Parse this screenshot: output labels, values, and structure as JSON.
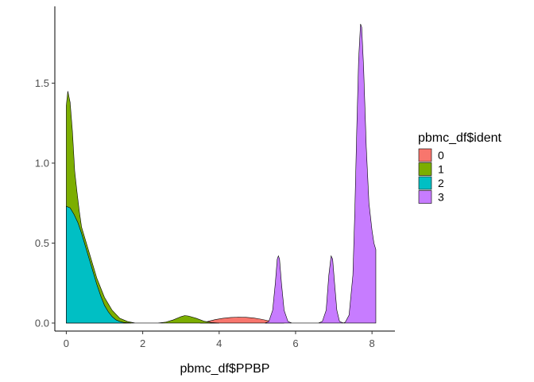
{
  "chart_data": {
    "type": "area",
    "subtype": "density",
    "title": "",
    "xlabel": "pbmc_df$PPBP",
    "ylabel": "",
    "xlim": [
      -0.3,
      8.6
    ],
    "ylim": [
      -0.05,
      1.98
    ],
    "x_ticks": [
      0,
      2,
      4,
      6,
      8
    ],
    "y_ticks": [
      0.0,
      0.5,
      1.0,
      1.5
    ],
    "x_tick_labels": [
      "0",
      "2",
      "4",
      "6",
      "8"
    ],
    "y_tick_labels": [
      "0.0",
      "0.5",
      "1.0",
      "1.5"
    ],
    "grid": false,
    "legend": {
      "title": "pbmc_df$ident",
      "position": "right"
    },
    "series": [
      {
        "name": "0",
        "color": "#F8766D",
        "points": [
          [
            3.5,
            0.0
          ],
          [
            3.7,
            0.01
          ],
          [
            3.9,
            0.022
          ],
          [
            4.1,
            0.03
          ],
          [
            4.3,
            0.035
          ],
          [
            4.5,
            0.037
          ],
          [
            4.7,
            0.036
          ],
          [
            4.9,
            0.032
          ],
          [
            5.1,
            0.024
          ],
          [
            5.3,
            0.014
          ],
          [
            5.5,
            0.005
          ],
          [
            5.7,
            0.0
          ]
        ]
      },
      {
        "name": "1",
        "color": "#7CAE00",
        "points": [
          [
            0.0,
            0.0
          ],
          [
            0.0,
            1.36
          ],
          [
            0.04,
            1.45
          ],
          [
            0.1,
            1.38
          ],
          [
            0.16,
            1.2
          ],
          [
            0.22,
            0.95
          ],
          [
            0.28,
            0.82
          ],
          [
            0.34,
            0.7
          ],
          [
            0.4,
            0.6
          ],
          [
            0.6,
            0.44
          ],
          [
            0.8,
            0.28
          ],
          [
            1.0,
            0.16
          ],
          [
            1.2,
            0.08
          ],
          [
            1.4,
            0.03
          ],
          [
            1.6,
            0.01
          ],
          [
            1.8,
            0.0
          ],
          [
            2.4,
            0.0
          ],
          [
            2.6,
            0.006
          ],
          [
            2.8,
            0.02
          ],
          [
            3.0,
            0.04
          ],
          [
            3.1,
            0.047
          ],
          [
            3.2,
            0.044
          ],
          [
            3.4,
            0.03
          ],
          [
            3.6,
            0.012
          ],
          [
            3.8,
            0.003
          ],
          [
            4.0,
            0.0
          ]
        ]
      },
      {
        "name": "2",
        "color": "#00BFC4",
        "points": [
          [
            0.0,
            0.0
          ],
          [
            0.0,
            0.73
          ],
          [
            0.1,
            0.72
          ],
          [
            0.2,
            0.68
          ],
          [
            0.3,
            0.63
          ],
          [
            0.4,
            0.56
          ],
          [
            0.5,
            0.48
          ],
          [
            0.6,
            0.4
          ],
          [
            0.7,
            0.32
          ],
          [
            0.8,
            0.24
          ],
          [
            0.9,
            0.17
          ],
          [
            1.0,
            0.11
          ],
          [
            1.1,
            0.07
          ],
          [
            1.2,
            0.04
          ],
          [
            1.3,
            0.02
          ],
          [
            1.4,
            0.01
          ],
          [
            1.5,
            0.004
          ],
          [
            1.7,
            0.0
          ]
        ]
      },
      {
        "name": "3",
        "color": "#C77CFF",
        "points": [
          [
            5.2,
            0.0
          ],
          [
            5.3,
            0.01
          ],
          [
            5.4,
            0.08
          ],
          [
            5.47,
            0.25
          ],
          [
            5.52,
            0.4
          ],
          [
            5.55,
            0.42
          ],
          [
            5.58,
            0.4
          ],
          [
            5.63,
            0.25
          ],
          [
            5.7,
            0.08
          ],
          [
            5.8,
            0.01
          ],
          [
            5.9,
            0.0
          ],
          [
            6.6,
            0.0
          ],
          [
            6.7,
            0.01
          ],
          [
            6.8,
            0.08
          ],
          [
            6.87,
            0.3
          ],
          [
            6.93,
            0.42
          ],
          [
            6.97,
            0.4
          ],
          [
            7.02,
            0.25
          ],
          [
            7.08,
            0.08
          ],
          [
            7.15,
            0.01
          ],
          [
            7.25,
            0.0
          ],
          [
            7.3,
            0.005
          ],
          [
            7.4,
            0.05
          ],
          [
            7.5,
            0.3
          ],
          [
            7.55,
            0.7
          ],
          [
            7.6,
            1.2
          ],
          [
            7.65,
            1.65
          ],
          [
            7.7,
            1.87
          ],
          [
            7.73,
            1.85
          ],
          [
            7.78,
            1.6
          ],
          [
            7.85,
            1.1
          ],
          [
            7.92,
            0.75
          ],
          [
            8.0,
            0.58
          ],
          [
            8.05,
            0.5
          ],
          [
            8.1,
            0.46
          ],
          [
            8.1,
            0.0
          ]
        ]
      }
    ]
  }
}
